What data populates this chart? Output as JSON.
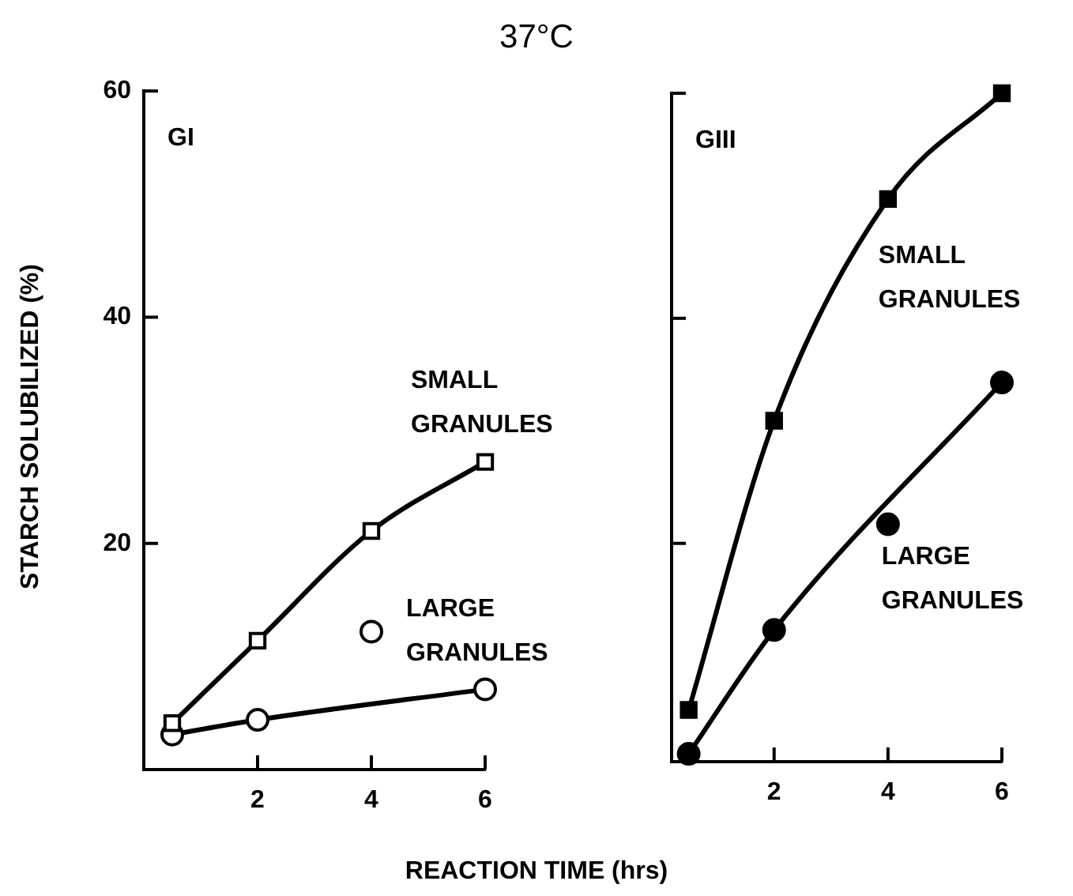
{
  "chart_data": [
    {
      "type": "line",
      "title": "37°C",
      "xlabel": "REACTION TIME (hrs)",
      "ylabel": "STARCH SOLUBILIZED (%)",
      "annotations": [
        "GI"
      ],
      "x": [
        0.5,
        2,
        4,
        6
      ],
      "xlim": [
        0,
        6
      ],
      "xticks": [
        2,
        4,
        6
      ],
      "ylim": [
        0,
        60
      ],
      "yticks": [
        20,
        40,
        60
      ],
      "series": [
        {
          "name": "SMALL GRANULES",
          "type": "line",
          "marker": "square",
          "color": "#000000",
          "values": [
            4.1,
            11.4,
            21.1,
            27.2
          ]
        },
        {
          "name": "LARGE GRANULES",
          "type": "scatter",
          "marker": "circle",
          "color": "#000000",
          "values": [
            3.1,
            4.4,
            12.2,
            7.1
          ]
        },
        {
          "type": "line",
          "marker": "none",
          "color": "#000000",
          "x": [
            0.5,
            2,
            6
          ],
          "values": [
            3.1,
            4.4,
            7.1
          ]
        }
      ]
    },
    {
      "type": "line",
      "annotations": [
        "GIII"
      ],
      "tick_labels": "x",
      "x": [
        0.5,
        2,
        4,
        6
      ],
      "xlim": [
        0.2,
        6
      ],
      "xticks": [
        2,
        4,
        6
      ],
      "ylim": [
        0.6,
        60
      ],
      "yticks": [
        20,
        40,
        60
      ],
      "series": [
        {
          "name": "SMALL GRANULES",
          "type": "line",
          "marker": "square",
          "color": "#000000",
          "values": [
            5.2,
            30.9,
            50.6,
            60
          ]
        },
        {
          "name": "LARGE GRANULES",
          "type": "scatter",
          "marker": "circle",
          "color": "#000000",
          "values": [
            1.3,
            12.3,
            21.7,
            34.3
          ]
        },
        {
          "type": "line",
          "marker": "none",
          "color": "#000000",
          "x": [
            0.5,
            2,
            6
          ],
          "values": [
            1.3,
            12.3,
            34.3
          ]
        }
      ]
    }
  ]
}
